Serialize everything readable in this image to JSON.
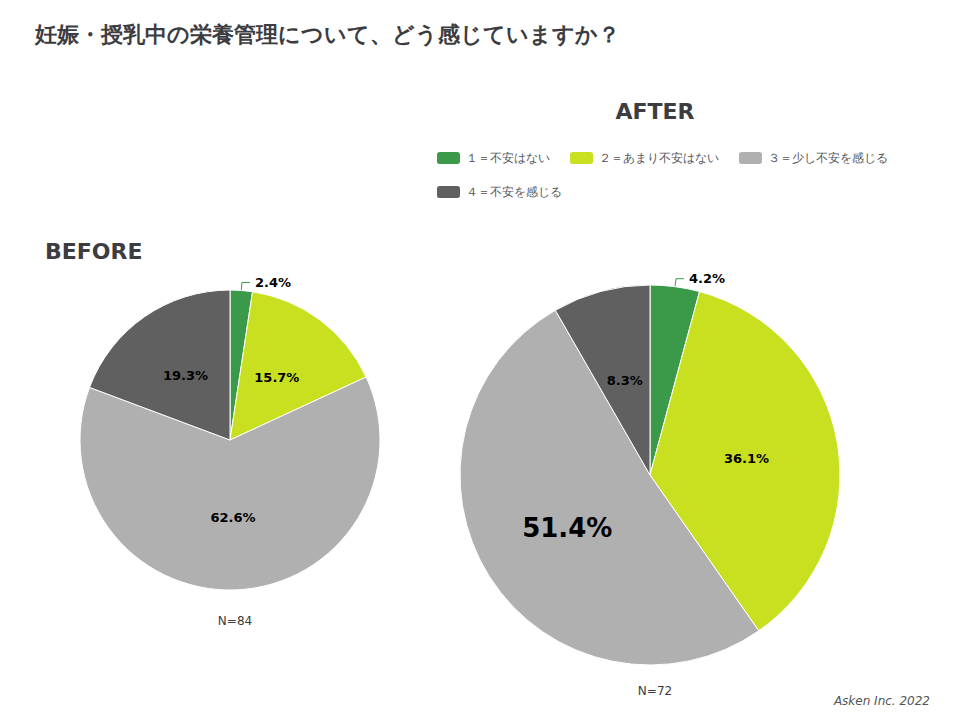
{
  "chart_data": {
    "type": "pie",
    "title": "妊娠・授乳中の栄養管理について、どう感じていますか？",
    "categories": [
      "１＝不安はない",
      "２＝あまり不安はない",
      "３＝少し不安を感じる",
      "４＝不安を感じる"
    ],
    "colors": [
      "#3a9a4a",
      "#c8e020",
      "#b0b0b0",
      "#606060"
    ],
    "legend": "top-right",
    "data_labels": true,
    "series": [
      {
        "name": "BEFORE",
        "values": [
          2.4,
          15.7,
          62.6,
          19.3
        ],
        "value_labels": [
          "2.4%",
          "15.7%",
          "62.6%",
          "19.3%"
        ],
        "annotations": [
          "N=84"
        ]
      },
      {
        "name": "AFTER",
        "values": [
          4.2,
          36.1,
          51.4,
          8.3
        ],
        "value_labels": [
          "4.2%",
          "36.1%",
          "51.4%",
          "8.3%"
        ],
        "annotations": [
          "N=72"
        ]
      }
    ],
    "annotations": [
      "Asken Inc. 2022"
    ]
  }
}
